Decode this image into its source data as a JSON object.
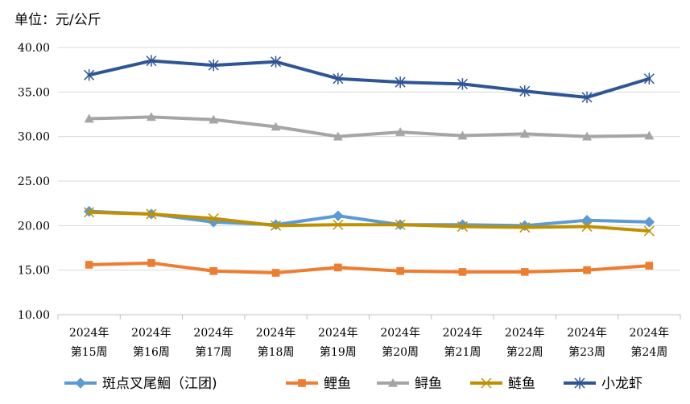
{
  "unit_label": "单位：元/公斤",
  "chart_data": {
    "type": "line",
    "title": "",
    "xlabel": "",
    "ylabel": "",
    "ylim": [
      10,
      40
    ],
    "yticks": [
      "10.00",
      "15.00",
      "20.00",
      "25.00",
      "30.00",
      "35.00",
      "40.00"
    ],
    "grid": true,
    "legend_position": "bottom",
    "categories": [
      [
        "2024年",
        "第15周"
      ],
      [
        "2024年",
        "第16周"
      ],
      [
        "2024年",
        "第17周"
      ],
      [
        "2024年",
        "第18周"
      ],
      [
        "2024年",
        "第19周"
      ],
      [
        "2024年",
        "第20周"
      ],
      [
        "2024年",
        "第21周"
      ],
      [
        "2024年",
        "第22周"
      ],
      [
        "2024年",
        "第23周"
      ],
      [
        "2024年",
        "第24周"
      ]
    ],
    "series": [
      {
        "name": "斑点叉尾鮰（江团)",
        "color": "#5B9BD5",
        "marker": "diamond",
        "values": [
          21.6,
          21.3,
          20.4,
          20.1,
          21.1,
          20.1,
          20.1,
          20.0,
          20.6,
          20.4
        ]
      },
      {
        "name": "鲤鱼",
        "color": "#ED7D31",
        "marker": "square",
        "values": [
          15.6,
          15.8,
          14.9,
          14.7,
          15.3,
          14.9,
          14.8,
          14.8,
          15.0,
          15.5
        ]
      },
      {
        "name": "鲟鱼",
        "color": "#A5A5A5",
        "marker": "triangle",
        "values": [
          32.0,
          32.2,
          31.9,
          31.1,
          30.0,
          30.5,
          30.1,
          30.3,
          30.0,
          30.1
        ]
      },
      {
        "name": "鲢鱼",
        "color": "#BF9000",
        "marker": "x",
        "values": [
          21.5,
          21.3,
          20.8,
          20.0,
          20.1,
          20.1,
          19.9,
          19.8,
          19.9,
          19.4
        ]
      },
      {
        "name": "小龙虾",
        "color": "#2F5597",
        "marker": "star",
        "values": [
          36.9,
          38.5,
          38.0,
          38.4,
          36.5,
          36.1,
          35.9,
          35.1,
          34.4,
          36.5
        ]
      }
    ]
  }
}
